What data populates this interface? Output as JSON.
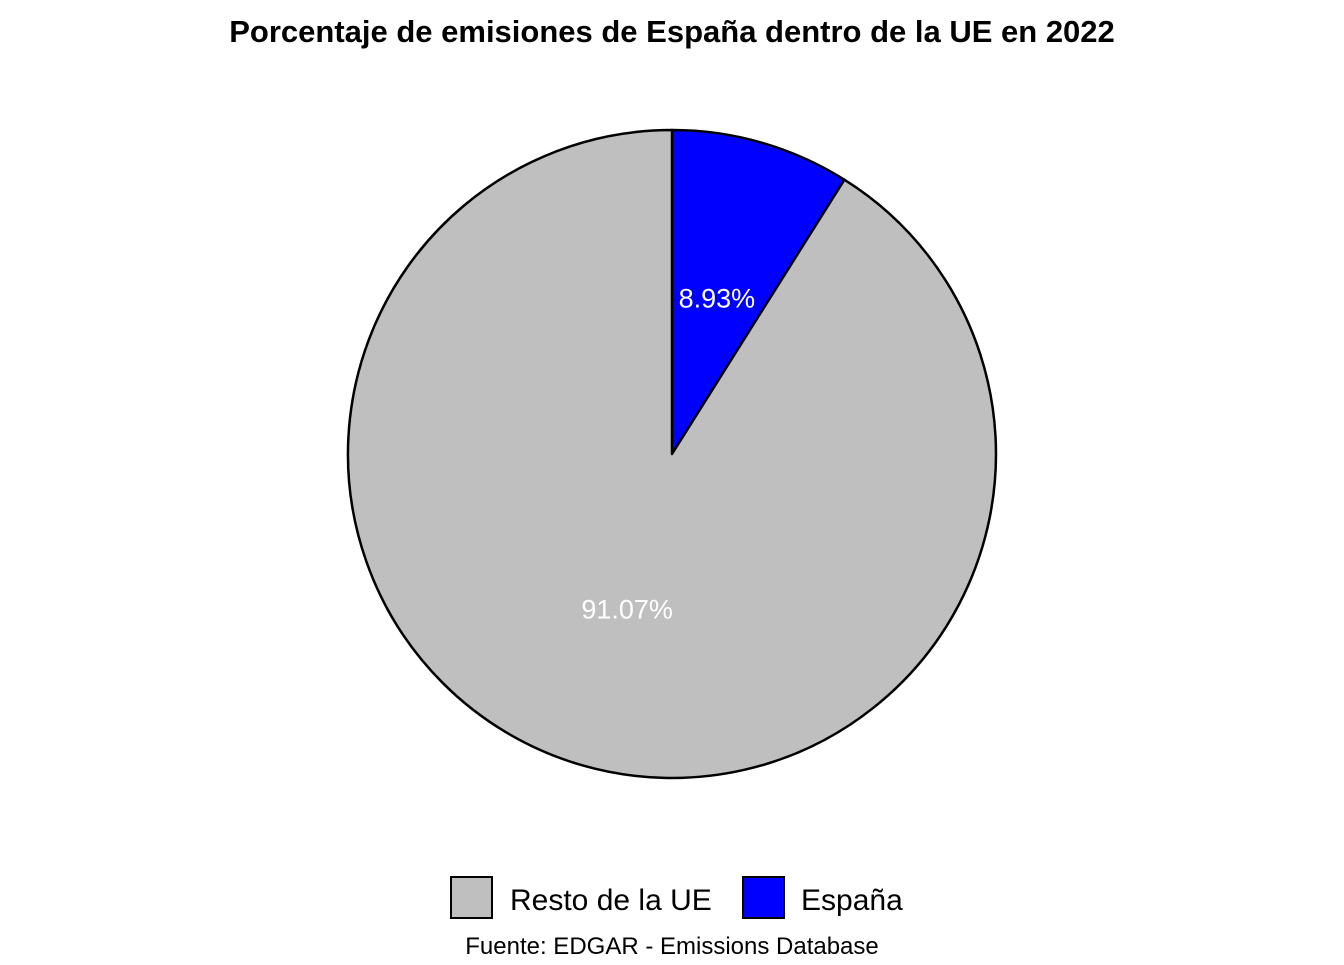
{
  "chart_data": {
    "type": "pie",
    "title": "Porcentaje de emisiones de España dentro de la UE en 2022",
    "slices": [
      {
        "name": "España",
        "value": 8.93,
        "label": "8.93%",
        "color": "#0000ff"
      },
      {
        "name": "Resto de la UE",
        "value": 91.07,
        "label": "91.07%",
        "color": "#bfbfbf"
      }
    ],
    "start_angle": "12 o'clock",
    "direction": "clockwise",
    "slice_border_color": "#000000",
    "label_color": "#ffffff",
    "legend": {
      "position": "bottom",
      "entries": [
        {
          "label": "Resto de la UE",
          "color": "#bfbfbf"
        },
        {
          "label": "España",
          "color": "#0000ff"
        }
      ]
    },
    "caption": "Fuente: EDGAR - Emissions Database"
  }
}
